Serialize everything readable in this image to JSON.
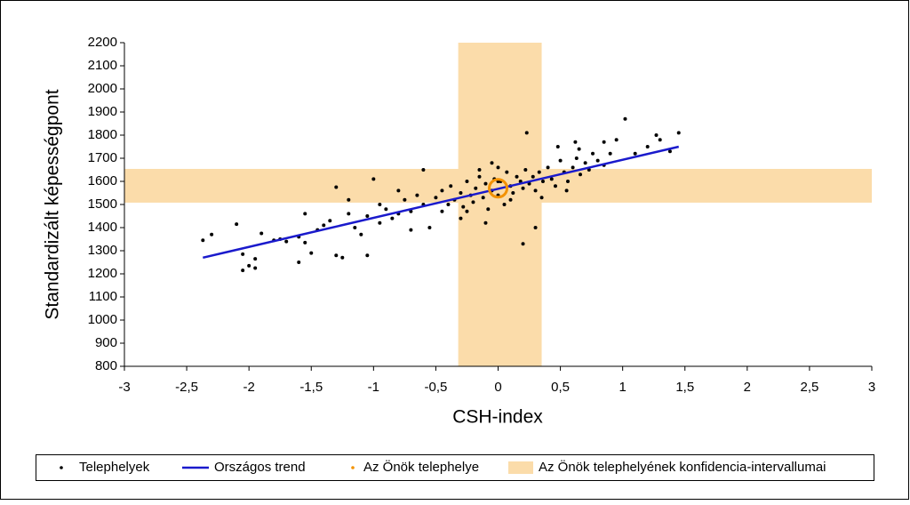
{
  "chart_data": {
    "type": "scatter",
    "x_label": "CSH-index",
    "y_label": "Standardizált képességpont",
    "xlim": [
      -3,
      3
    ],
    "ylim": [
      800,
      2200
    ],
    "xticks": [
      -3,
      {
        "value": -2.5,
        "label": "-2,5"
      },
      -2,
      {
        "value": -1.5,
        "label": "-1,5"
      },
      -1,
      {
        "value": -0.5,
        "label": "-0,5"
      },
      0,
      {
        "value": 0.5,
        "label": "0,5"
      },
      1,
      {
        "value": 1.5,
        "label": "1,5"
      },
      2,
      {
        "value": 2.5,
        "label": "2,5"
      },
      3
    ],
    "yticks": [
      800,
      900,
      1000,
      1100,
      1200,
      1300,
      1400,
      1500,
      1600,
      1700,
      1800,
      1900,
      2000,
      2100,
      2200
    ],
    "band": {
      "name": "Az Önök telephelyének konfidencia-intervallumai",
      "color": "#fbdcaa",
      "x": [
        -0.32,
        0.35
      ],
      "y": [
        1508,
        1654
      ]
    },
    "series": [
      {
        "name": "Telephelyek",
        "type": "scatter",
        "color": "#000000",
        "x": [
          -2.37,
          -2.3,
          -2.1,
          -2.05,
          -2.05,
          -2.0,
          -1.95,
          -1.95,
          -1.9,
          -1.8,
          -1.75,
          -1.6,
          -1.55,
          -1.55,
          -1.5,
          -1.4,
          -1.3,
          -1.3,
          -1.25,
          -1.2,
          -1.1,
          -1.05,
          -1.0,
          -0.95,
          -0.85,
          -0.8,
          -0.7,
          -0.6,
          -0.55,
          -0.45,
          -0.3,
          -0.1,
          0.0,
          0.2,
          0.23,
          0.3,
          0.48,
          0.62,
          0.85,
          0.95,
          1.02,
          1.2,
          1.27,
          1.3,
          1.38,
          1.45,
          -0.5,
          -0.45,
          -0.4,
          -0.38,
          -0.35,
          -0.3,
          -0.28,
          -0.25,
          -0.22,
          -0.2,
          -0.18,
          -0.15,
          -0.12,
          -0.1,
          -0.08,
          -0.05,
          -0.03,
          0,
          0.02,
          0.05,
          0.07,
          0.1,
          0.12,
          0.15,
          0.18,
          0.2,
          0.22,
          0.25,
          0.28,
          0.3,
          0.33,
          0.36,
          0.4,
          0.43,
          0.46,
          0.5,
          0.53,
          0.56,
          0.6,
          0.63,
          0.66,
          0.7,
          0.73,
          0.76,
          0.8,
          0.85,
          0.9,
          -0.6,
          -0.65,
          -0.7,
          -0.75,
          -0.8,
          -0.9,
          -0.95,
          -1.05,
          -1.15,
          -1.2,
          -1.35,
          -1.45,
          -1.6,
          -1.7,
          -0.25,
          -0.15,
          0.1,
          0.35,
          0.55,
          0.65,
          1.1,
          -0.05,
          0.0
        ],
        "values": [
          1345,
          1370,
          1415,
          1285,
          1215,
          1235,
          1265,
          1225,
          1375,
          1345,
          1350,
          1250,
          1335,
          1460,
          1290,
          1410,
          1575,
          1280,
          1270,
          1520,
          1370,
          1280,
          1610,
          1500,
          1440,
          1560,
          1390,
          1650,
          1400,
          1470,
          1440,
          1420,
          1660,
          1330,
          1810,
          1400,
          1750,
          1770,
          1770,
          1780,
          1870,
          1750,
          1800,
          1780,
          1730,
          1810,
          1530,
          1560,
          1500,
          1580,
          1520,
          1550,
          1490,
          1600,
          1540,
          1510,
          1570,
          1620,
          1530,
          1590,
          1480,
          1560,
          1610,
          1540,
          1600,
          1500,
          1640,
          1580,
          1550,
          1620,
          1600,
          1570,
          1650,
          1590,
          1620,
          1560,
          1640,
          1600,
          1660,
          1610,
          1580,
          1690,
          1640,
          1600,
          1660,
          1700,
          1630,
          1680,
          1650,
          1720,
          1690,
          1670,
          1720,
          1500,
          1540,
          1470,
          1520,
          1460,
          1480,
          1420,
          1450,
          1400,
          1460,
          1430,
          1390,
          1360,
          1340,
          1470,
          1650,
          1520,
          1530,
          1560,
          1740,
          1720,
          1680,
          1600
        ]
      },
      {
        "name": "Országos trend",
        "type": "line",
        "color": "#1a1acc",
        "x": [
          -2.37,
          1.45
        ],
        "values": [
          1270,
          1750
        ]
      },
      {
        "name": "Az Önök telephelye",
        "type": "marker",
        "color": "#f39200",
        "x": [
          0
        ],
        "values": [
          1570
        ]
      }
    ]
  }
}
